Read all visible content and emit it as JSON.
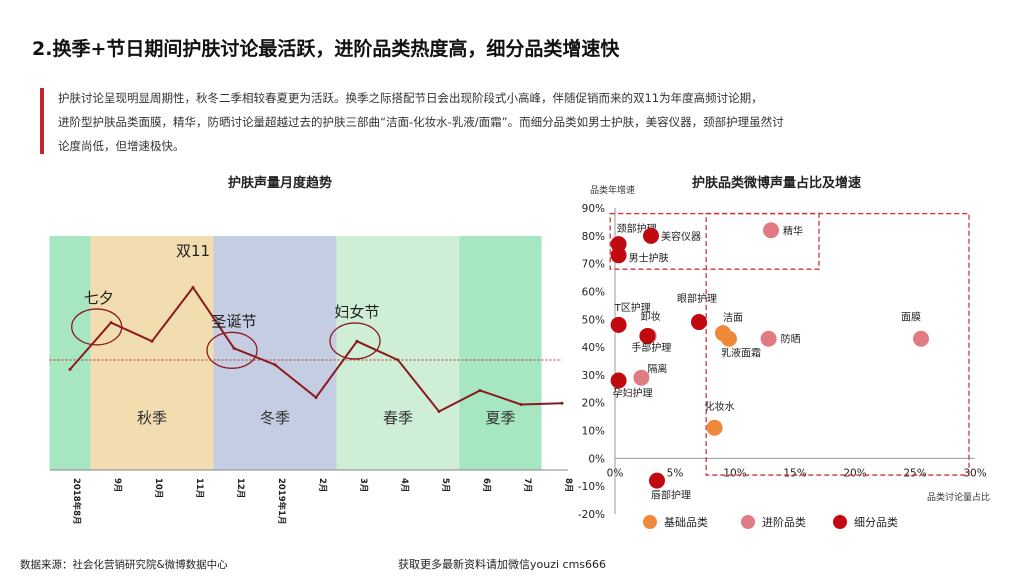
{
  "header": {
    "title": "2.换季+节日期间护肤讨论最活跃，进阶品类热度高，细分品类增速快"
  },
  "description": {
    "lines": [
      "护肤讨论呈现明显周期性，秋冬二季相较春夏更为活跃。换季之际搭配节日会出现阶段式小高峰，伴随促销而来的双11为年度高频讨论期，",
      "进阶型护肤品类面膜，精华，防晒讨论量超越过去的护肤三部曲“洁面-化妆水-乳液/面霜”。而细分品类如男士护肤，美容仪器，颈部护理虽然讨",
      "论度尚低，但增速极快。"
    ]
  },
  "footer": {
    "source": "数据来源：社会化营销研究院&微博数据中心",
    "contact": "获取更多最新资料请加微信youzi cms666"
  },
  "colors": {
    "title_accent": "#c0272d",
    "line": "#8b1a1f",
    "autumn": "#f1ddb0",
    "winter": "#c5cde2",
    "spring": "#cfeed6",
    "summer_green": "#a6e6c0",
    "basic": "#f0883a",
    "advanced": "#e07b84",
    "niche": "#c00a10",
    "box": "#d0343a"
  },
  "chart_data": [
    {
      "type": "line",
      "title": "护肤声量月度趋势",
      "x": [
        "2018年8月",
        "9月",
        "10月",
        "11月",
        "12月",
        "2019年1月",
        "2月",
        "3月",
        "4月",
        "5月",
        "6月",
        "7月",
        "8月"
      ],
      "values": [
        0.43,
        0.63,
        0.55,
        0.78,
        0.52,
        0.45,
        0.31,
        0.55,
        0.47,
        0.25,
        0.34,
        0.28,
        0.285
      ],
      "value_min": 0,
      "value_max": 1,
      "reference_line": 0.47,
      "seasons": [
        {
          "label": "",
          "from": -0.5,
          "to": 0.5,
          "color": "#a6e6c0"
        },
        {
          "label": "秋季",
          "from": 0.5,
          "to": 3.5,
          "color": "#f1ddb0"
        },
        {
          "label": "冬季",
          "from": 3.5,
          "to": 6.5,
          "color": "#c5cde2"
        },
        {
          "label": "春季",
          "from": 6.5,
          "to": 9.5,
          "color": "#cfeed6"
        },
        {
          "label": "夏季",
          "from": 9.5,
          "to": 11.5,
          "color": "#a6e6c0"
        }
      ],
      "annotations": [
        {
          "label": "七夕",
          "at": 0.7,
          "value": 0.62,
          "circled": true
        },
        {
          "label": "双11",
          "at": 3.0,
          "value": 0.82,
          "circled": false
        },
        {
          "label": "圣诞节",
          "at": 4.0,
          "value": 0.52,
          "circled": true
        },
        {
          "label": "妇女节",
          "at": 7.0,
          "value": 0.56,
          "circled": true
        }
      ]
    },
    {
      "type": "scatter",
      "title": "护肤品类微博声量占比及增速",
      "xlabel": "品类讨论量占比",
      "ylabel": "品类年增速",
      "xlim": [
        0,
        30
      ],
      "ylim": [
        -20,
        90
      ],
      "xticks": [
        "0%",
        "5%",
        "10%",
        "15%",
        "20%",
        "25%",
        "30%"
      ],
      "yticks": [
        "-20%",
        "-10%",
        "0%",
        "10%",
        "20%",
        "30%",
        "40%",
        "50%",
        "60%",
        "70%",
        "80%",
        "90%"
      ],
      "legend": [
        {
          "key": "basic",
          "label": "基础品类"
        },
        {
          "key": "advanced",
          "label": "进阶品类"
        },
        {
          "key": "niche",
          "label": "细分品类"
        }
      ],
      "points": [
        {
          "name": "颈部护理",
          "x": 0.3,
          "y": 77,
          "cat": "niche"
        },
        {
          "name": "美容仪器",
          "x": 3.0,
          "y": 80,
          "cat": "niche"
        },
        {
          "name": "男士护肤",
          "x": 0.3,
          "y": 73,
          "cat": "niche"
        },
        {
          "name": "精华",
          "x": 13.0,
          "y": 82,
          "cat": "advanced"
        },
        {
          "name": "T区护理",
          "x": 0.3,
          "y": 48,
          "cat": "niche"
        },
        {
          "name": "眼部护理",
          "x": 7.0,
          "y": 49,
          "cat": "niche"
        },
        {
          "name": "乳液面霜",
          "x": 9.5,
          "y": 43,
          "cat": "basic"
        },
        {
          "name": "洁面",
          "x": 9.0,
          "y": 45,
          "cat": "basic"
        },
        {
          "name": "面膜",
          "x": 25.5,
          "y": 43,
          "cat": "advanced"
        },
        {
          "name": "防晒",
          "x": 12.8,
          "y": 43,
          "cat": "advanced"
        },
        {
          "name": "卸妆",
          "x": 2.8,
          "y": 44,
          "cat": "advanced"
        },
        {
          "name": "手部护理",
          "x": 2.7,
          "y": 44,
          "cat": "niche"
        },
        {
          "name": "隔离",
          "x": 2.2,
          "y": 29,
          "cat": "advanced"
        },
        {
          "name": "孕妇护理",
          "x": 0.3,
          "y": 28,
          "cat": "niche"
        },
        {
          "name": "化妆水",
          "x": 8.3,
          "y": 11,
          "cat": "basic"
        },
        {
          "name": "唇部护理",
          "x": 3.5,
          "y": -8,
          "cat": "niche"
        }
      ]
    }
  ]
}
